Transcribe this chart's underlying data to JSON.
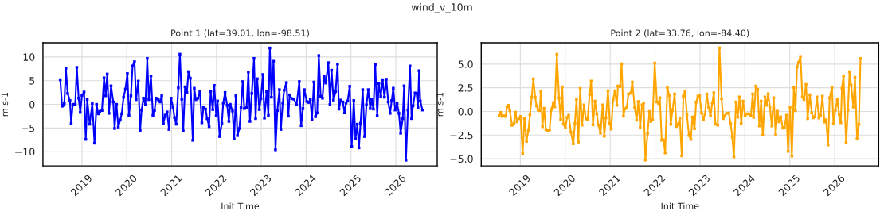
{
  "chart_data": [
    {
      "type": "line",
      "title": "Point 1 (lat=39.01, lon=-98.51)",
      "xlabel": "Init Time",
      "ylabel": "m s-1",
      "annotations": [
        "wind_v_10m"
      ],
      "marker": "square",
      "grid": true,
      "xlim": [
        "2018-02-17",
        "2026-12-05"
      ],
      "ylim": [
        -13,
        13
      ],
      "xticks": [
        {
          "value": "2019",
          "label": "2019"
        },
        {
          "value": "2020",
          "label": "2020"
        },
        {
          "value": "2021",
          "label": "2021"
        },
        {
          "value": "2022",
          "label": "2022"
        },
        {
          "value": "2023",
          "label": "2023"
        },
        {
          "value": "2024",
          "label": "2024"
        },
        {
          "value": "2025",
          "label": "2025"
        },
        {
          "value": "2026",
          "label": "2026"
        }
      ],
      "yticks": [
        {
          "value": -10,
          "label": "−10"
        },
        {
          "value": -5,
          "label": "−5"
        },
        0,
        5,
        10
      ],
      "series": [
        {
          "color": "#0000ff",
          "x": [
            "2018-07-08",
            "2018-07-23",
            "2018-08-01",
            "2018-08-10",
            "2018-08-23",
            "2018-09-06",
            "2018-09-25",
            "2018-10-05",
            "2018-10-18",
            "2018-11-07",
            "2018-11-20",
            "2018-12-05",
            "2018-12-18",
            "2019-01-01",
            "2019-01-18",
            "2019-02-01",
            "2019-02-13",
            "2019-03-05",
            "2019-03-26",
            "2019-04-13",
            "2019-04-30",
            "2019-05-13",
            "2019-05-26",
            "2019-06-13",
            "2019-06-30",
            "2019-07-13",
            "2019-07-26",
            "2019-08-09",
            "2019-08-26",
            "2019-09-13",
            "2019-09-24",
            "2019-10-09",
            "2019-10-24",
            "2019-11-09",
            "2019-11-21",
            "2019-12-06",
            "2019-12-21",
            "2020-01-06",
            "2020-01-19",
            "2020-02-04",
            "2020-02-17",
            "2020-03-04",
            "2020-03-17",
            "2020-04-04",
            "2020-04-19",
            "2020-05-01",
            "2020-05-16",
            "2020-06-01",
            "2020-06-16",
            "2020-06-29",
            "2020-07-16",
            "2020-08-01",
            "2020-08-14",
            "2020-08-27",
            "2020-09-14",
            "2020-09-29",
            "2020-10-12",
            "2020-10-25",
            "2020-11-10",
            "2020-11-25",
            "2020-12-10",
            "2020-12-27",
            "2021-01-12",
            "2021-01-24",
            "2021-02-07",
            "2021-02-24",
            "2021-03-09",
            "2021-03-24",
            "2021-04-05",
            "2021-04-20",
            "2021-05-05",
            "2021-05-18",
            "2021-06-02",
            "2021-06-22",
            "2021-07-04",
            "2021-07-17",
            "2021-08-02",
            "2021-08-19",
            "2021-09-04",
            "2021-09-17",
            "2021-10-04",
            "2021-10-17",
            "2021-11-02",
            "2021-11-15",
            "2021-12-02",
            "2021-12-14",
            "2021-12-30",
            "2022-01-10",
            "2022-01-27",
            "2022-02-14",
            "2022-02-25",
            "2022-03-12",
            "2022-03-29",
            "2022-04-12",
            "2022-04-23",
            "2022-05-12",
            "2022-05-25",
            "2022-06-08",
            "2022-06-21",
            "2022-07-07",
            "2022-07-20",
            "2022-08-03",
            "2022-08-16",
            "2022-09-03",
            "2022-09-18",
            "2022-10-01",
            "2022-10-16",
            "2022-11-03",
            "2022-11-16",
            "2022-11-29",
            "2022-12-16",
            "2022-12-29",
            "2023-01-14",
            "2023-01-27",
            "2023-02-14",
            "2023-02-28",
            "2023-03-12",
            "2023-03-25",
            "2023-04-11",
            "2023-04-27",
            "2023-05-12",
            "2023-05-29",
            "2023-06-10",
            "2023-06-25",
            "2023-07-07",
            "2023-07-25",
            "2023-08-10",
            "2023-08-20",
            "2023-09-07",
            "2023-09-25",
            "2023-10-16",
            "2023-11-07",
            "2023-11-22",
            "2023-12-07",
            "2023-12-18",
            "2024-01-07",
            "2024-01-20",
            "2024-02-05",
            "2024-02-18",
            "2024-03-05",
            "2024-03-18",
            "2024-04-01",
            "2024-04-14",
            "2024-04-29",
            "2024-05-14",
            "2024-05-27",
            "2024-06-10",
            "2024-07-01",
            "2024-07-14",
            "2024-07-27",
            "2024-08-12",
            "2024-08-29",
            "2024-09-14",
            "2024-09-25",
            "2024-10-10",
            "2024-10-27",
            "2024-11-10",
            "2024-11-22",
            "2024-12-05",
            "2024-12-22",
            "2025-01-07",
            "2025-01-24",
            "2025-02-07",
            "2025-02-22",
            "2025-03-07",
            "2025-03-20",
            "2025-04-07",
            "2025-04-22",
            "2025-05-07",
            "2025-05-22",
            "2025-06-07",
            "2025-06-18",
            "2025-07-03",
            "2025-07-18",
            "2025-08-03",
            "2025-08-16",
            "2025-09-01",
            "2025-09-16",
            "2025-10-01",
            "2025-10-16",
            "2025-11-01",
            "2025-11-16",
            "2025-11-29",
            "2025-12-12",
            "2025-12-27",
            "2026-01-12",
            "2026-01-27",
            "2026-02-10",
            "2026-02-27",
            "2026-03-10",
            "2026-03-25",
            "2026-04-10",
            "2026-04-27",
            "2026-05-10",
            "2026-05-22",
            "2026-06-07",
            "2026-06-20",
            "2026-07-01",
            "2026-07-10",
            "2026-07-20",
            "2026-08-07"
          ],
          "values": [
            5.2,
            -0.4,
            -0.2,
            0.2,
            7.6,
            2.3,
            0.8,
            -4.0,
            0,
            0,
            7.8,
            1.3,
            -1.7,
            1.9,
            2.6,
            -7.4,
            1.0,
            -4.2,
            0.2,
            -8.2,
            0,
            -2.0,
            -1.5,
            -1.3,
            5.6,
            1.8,
            6.4,
            -1.9,
            3.9,
            0.5,
            -5.1,
            0,
            -4.8,
            -3.3,
            -2.0,
            1.5,
            3.2,
            6.5,
            -2.3,
            1.8,
            8.1,
            9.0,
            1.0,
            4.9,
            -5.5,
            -1.2,
            1.3,
            -0.1,
            9.7,
            1.0,
            6.0,
            -2.3,
            -1.3,
            1.3,
            1.0,
            0.5,
            1.8,
            -4.1,
            -2.3,
            -1.6,
            -5.3,
            1.3,
            -0.6,
            -2.8,
            -4.2,
            3.5,
            10.6,
            1.1,
            -5.6,
            3.7,
            2.5,
            6.9,
            5.5,
            -7.6,
            3.4,
            1.0,
            1.3,
            2.7,
            -3.9,
            -0.7,
            -1.0,
            -3.0,
            -4.7,
            2.7,
            -1.1,
            4.0,
            -2.4,
            0.7,
            -6.8,
            -4.0,
            0.3,
            2.5,
            -0.2,
            -3.6,
            0,
            -1.4,
            -7.3,
            1.8,
            -6.6,
            -5.1,
            -0.7,
            4.8,
            -0.9,
            -0.7,
            6.8,
            -3.6,
            2.3,
            9.7,
            -3.0,
            5.4,
            -1.1,
            1.2,
            6.3,
            -2.9,
            2.7,
            -2.3,
            11.9,
            1.5,
            9.1,
            -9.6,
            -1.3,
            3.1,
            -5.3,
            0.3,
            3.0,
            4.6,
            -2.5,
            2.0,
            1.2,
            1.1,
            -0.1,
            4.8,
            -4.5,
            -0.9,
            3.1,
            0.6,
            0.4,
            1.0,
            -3.2,
            4.7,
            -2.6,
            -1.8,
            10.3,
            1.7,
            1.3,
            5.9,
            4.5,
            8.8,
            0,
            7.2,
            0.9,
            2.7,
            8.5,
            -1.0,
            0.9,
            0.5,
            -1.8,
            0.3,
            0.7,
            3.8,
            -8.9,
            0.8,
            -7.3,
            -4.2,
            -9.2,
            -4.0,
            3.1,
            -6.8,
            -0.1,
            3.1,
            -0.9,
            1.0,
            -1.0,
            8.4,
            -2.4,
            4.4,
            1.7,
            5.2,
            1.5,
            5.3,
            0.5,
            -1.9,
            0.8,
            3.4,
            -1.2,
            0.2,
            -1.9,
            -6.1,
            -3.0,
            3.9,
            -11.8,
            -1.2,
            8.1,
            -3.0,
            -0.3,
            2.4,
            2.3,
            -0.7,
            7.1,
            0.7,
            -1.2
          ]
        }
      ]
    },
    {
      "type": "line",
      "title": "Point 2 (lat=33.76, lon=-84.40)",
      "xlabel": "Init Time",
      "ylabel": "m s-1",
      "marker": "square",
      "grid": true,
      "xlim": [
        "2018-02-17",
        "2026-12-25"
      ],
      "ylim": [
        -5.75,
        7.25
      ],
      "xticks": [
        {
          "value": "2019",
          "label": "2019"
        },
        {
          "value": "2020",
          "label": "2020"
        },
        {
          "value": "2021",
          "label": "2021"
        },
        {
          "value": "2022",
          "label": "2022"
        },
        {
          "value": "2023",
          "label": "2023"
        },
        {
          "value": "2024",
          "label": "2024"
        },
        {
          "value": "2025",
          "label": "2025"
        },
        {
          "value": "2026",
          "label": "2026"
        }
      ],
      "yticks": [
        {
          "value": -5,
          "label": "−5.0"
        },
        {
          "value": -2.5,
          "label": "−2.5"
        },
        {
          "value": 0,
          "label": "0.0"
        },
        {
          "value": 2.5,
          "label": "2.5"
        },
        {
          "value": 5,
          "label": "5.0"
        }
      ],
      "series": [
        {
          "color": "#ffa500",
          "x": [
            "2018-07-13",
            "2018-07-24",
            "2018-08-06",
            "2018-08-19",
            "2018-09-04",
            "2018-09-14",
            "2018-09-25",
            "2018-10-08",
            "2018-10-25",
            "2018-11-10",
            "2018-11-23",
            "2018-12-05",
            "2018-12-20",
            "2019-01-03",
            "2019-01-20",
            "2019-02-03",
            "2019-02-20",
            "2019-03-07",
            "2019-03-20",
            "2019-04-04",
            "2019-04-17",
            "2019-05-02",
            "2019-05-13",
            "2019-05-26",
            "2019-06-06",
            "2019-06-17",
            "2019-06-30",
            "2019-07-13",
            "2019-07-28",
            "2019-08-10",
            "2019-08-27",
            "2019-09-10",
            "2019-09-25",
            "2019-10-08",
            "2019-10-25",
            "2019-11-12",
            "2019-11-25",
            "2019-12-08",
            "2019-12-18",
            "2020-01-03",
            "2020-01-16",
            "2020-01-29",
            "2020-02-16",
            "2020-03-07",
            "2020-03-20",
            "2020-04-02",
            "2020-04-17",
            "2020-05-02",
            "2020-05-17",
            "2020-06-02",
            "2020-06-17",
            "2020-07-02",
            "2020-07-17",
            "2020-07-30",
            "2020-08-14",
            "2020-08-30",
            "2020-09-14",
            "2020-09-27",
            "2020-10-14",
            "2020-11-01",
            "2020-11-14",
            "2020-11-27",
            "2020-12-14",
            "2020-12-29",
            "2021-01-09",
            "2021-01-24",
            "2021-02-09",
            "2021-02-24",
            "2021-03-05",
            "2021-03-22",
            "2021-04-04",
            "2021-04-19",
            "2021-04-30",
            "2021-05-15",
            "2021-05-30",
            "2021-06-17",
            "2021-06-30",
            "2021-07-19",
            "2021-08-04",
            "2021-08-17",
            "2021-09-02",
            "2021-09-17",
            "2021-09-30",
            "2021-10-14",
            "2021-11-01",
            "2021-11-16",
            "2021-11-27",
            "2021-12-12",
            "2021-12-29",
            "2022-01-16",
            "2022-01-29",
            "2022-02-09",
            "2022-02-24",
            "2022-03-11",
            "2022-03-24",
            "2022-04-11",
            "2022-04-26",
            "2022-05-09",
            "2022-05-22",
            "2022-06-09",
            "2022-06-24",
            "2022-07-06",
            "2022-07-21",
            "2022-08-06",
            "2022-08-19",
            "2022-09-02",
            "2022-09-17",
            "2022-10-04",
            "2022-10-19",
            "2022-11-01",
            "2022-11-18",
            "2022-12-01",
            "2022-12-16",
            "2022-12-29",
            "2023-01-14",
            "2023-01-29",
            "2023-02-11",
            "2023-02-26",
            "2023-03-13",
            "2023-03-28",
            "2023-04-11",
            "2023-04-24",
            "2023-05-07",
            "2023-05-26",
            "2023-06-09",
            "2023-06-26",
            "2023-07-09",
            "2023-07-21",
            "2023-08-06",
            "2023-08-23",
            "2023-09-08",
            "2023-09-21",
            "2023-10-04",
            "2023-10-21",
            "2023-11-05",
            "2023-11-18",
            "2023-12-03",
            "2023-12-18",
            "2024-01-03",
            "2024-01-16",
            "2024-02-03",
            "2024-02-20",
            "2024-03-05",
            "2024-03-13",
            "2024-03-31",
            "2024-04-15",
            "2024-04-28",
            "2024-05-13",
            "2024-05-26",
            "2024-06-13",
            "2024-06-26",
            "2024-07-09",
            "2024-07-23",
            "2024-08-08",
            "2024-08-23",
            "2024-09-08",
            "2024-09-23",
            "2024-10-05",
            "2024-10-19",
            "2024-11-05",
            "2024-11-18",
            "2024-12-05",
            "2024-12-18",
            "2025-01-03",
            "2025-01-18",
            "2025-02-03",
            "2025-02-16",
            "2025-03-01",
            "2025-03-13",
            "2025-03-29",
            "2025-04-13",
            "2025-04-26",
            "2025-05-13",
            "2025-05-26",
            "2025-06-13",
            "2025-06-28",
            "2025-07-11",
            "2025-07-23",
            "2025-08-10",
            "2025-08-25",
            "2025-09-08",
            "2025-09-23",
            "2025-10-10",
            "2025-10-23",
            "2025-11-08",
            "2025-11-21",
            "2025-12-10",
            "2025-12-22",
            "2026-01-07",
            "2026-01-22",
            "2026-02-07",
            "2026-02-20",
            "2026-03-01",
            "2026-03-14",
            "2026-04-04",
            "2026-04-19",
            "2026-05-02",
            "2026-05-15",
            "2026-06-02",
            "2026-06-15",
            "2026-07-02",
            "2026-07-17",
            "2026-07-30"
          ],
          "values": [
            -0.45,
            -0.11,
            -0.53,
            -0.47,
            -0.53,
            0.47,
            0.64,
            0.08,
            -1.48,
            -1.26,
            -0.08,
            -1.09,
            -0.75,
            -0.53,
            -4.47,
            -0.75,
            -3.16,
            -2.04,
            -0.36,
            1.51,
            3.44,
            1.48,
            0.59,
            0.14,
            0.08,
            2.07,
            -1.62,
            0.34,
            -1.9,
            -2.04,
            -1.96,
            0.2,
            0.92,
            0.47,
            6.03,
            1.42,
            -0.84,
            2.6,
            -1.34,
            -1.73,
            -0.64,
            -0.39,
            -2.18,
            -3.41,
            -1.26,
            1.26,
            -3.24,
            2.43,
            -1.45,
            0.7,
            -0.78,
            -0.81,
            1.79,
            3.21,
            -1.4,
            1.09,
            -0.25,
            -1.45,
            -2.29,
            0.7,
            -2.63,
            -0.67,
            2.18,
            -1.23,
            -1.87,
            1.23,
            2.18,
            0.64,
            2.68,
            2.63,
            5.03,
            -0.5,
            0.28,
            0.42,
            1.84,
            1.93,
            3.1,
            0.42,
            -0.92,
            1.04,
            -1.68,
            0.7,
            0.87,
            -5.14,
            -2.35,
            0,
            -1.06,
            -0.89,
            5.11,
            1.01,
            0.84,
            1.45,
            -3.04,
            -2.99,
            -4.39,
            2.51,
            1.7,
            -1.37,
            0.08,
            1.84,
            -1.59,
            -1.4,
            -0.7,
            -4.69,
            1.62,
            2.09,
            -0.34,
            -2.54,
            -2.96,
            -0.59,
            -1.82,
            0.98,
            1.62,
            1.68,
            -0.14,
            -0.87,
            -0.28,
            1.84,
            0.42,
            -0.47,
            0.89,
            1.96,
            -1.34,
            -1.45,
            6.7,
            1.34,
            -0.75,
            -0.47,
            -0.2,
            -0.17,
            -1.31,
            -2.71,
            -4.81,
            1.01,
            -0.61,
            1.54,
            -1.26,
            1.09,
            -0.47,
            -0.25,
            -0.25,
            -0.47,
            1.84,
            -0.64,
            2.69,
            2.32,
            -1.54,
            1.09,
            -2.49,
            1.54,
            0.64,
            1.87,
            0.47,
            -1.54,
            1.45,
            -2.46,
            0.03,
            -1.09,
            -0.56,
            -1.76,
            -1.7,
            -0.39,
            -4.22,
            0.42,
            -4.72,
            2.51,
            0.08,
            4.72,
            5.17,
            5.81,
            1.54,
            1.26,
            2.85,
            -0.75,
            1.76,
            -0.14,
            -0.67,
            -0.56,
            1.54,
            -0.7,
            -0.42,
            1.62,
            -1.12,
            -0.89,
            -3.55,
            1.43,
            2.51,
            -1.29,
            0.14,
            1.26,
            -0.34,
            -1.2,
            2.46,
            3.74,
            -3.3,
            0.17,
            4.19,
            2.77,
            0.45,
            3.6,
            -2.88,
            -1.37,
            5.59
          ]
        }
      ]
    }
  ]
}
